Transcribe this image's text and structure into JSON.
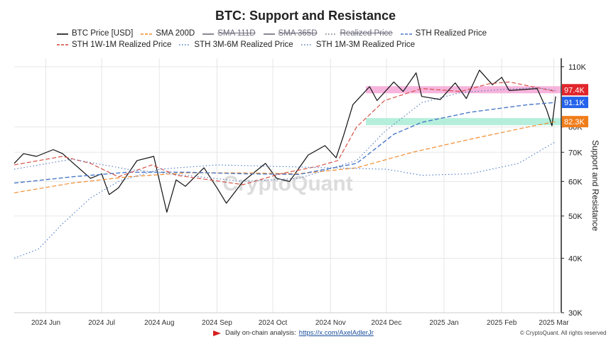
{
  "chart_data": {
    "type": "line",
    "title": "BTC: Support and Resistance",
    "ylabel": "Support and Resistance",
    "xlabel": "",
    "scale": "log",
    "ylim": [
      30000,
      115000
    ],
    "x_ticks": [
      "2024 Jun",
      "2024 Jul",
      "2024 Aug",
      "2024 Sep",
      "2024 Oct",
      "2024 Nov",
      "2024 Dec",
      "2025 Jan",
      "2025 Feb",
      "2025 Mar"
    ],
    "y_ticks": [
      {
        "value": 30000,
        "label": "30K"
      },
      {
        "value": 40000,
        "label": "40K"
      },
      {
        "value": 50000,
        "label": "50K"
      },
      {
        "value": 60000,
        "label": "60K"
      },
      {
        "value": 70000,
        "label": "70K"
      },
      {
        "value": 80000,
        "label": "80K"
      },
      {
        "value": 110000,
        "label": "110K"
      }
    ],
    "x_range": [
      "2024-05-15",
      "2025-03-05"
    ],
    "zones": [
      {
        "name": "resistance",
        "y": 97400,
        "from": "2024-11-20",
        "color": "#f4a7d6"
      },
      {
        "name": "support",
        "y": 82300,
        "from": "2024-11-20",
        "color": "#a8ecd6"
      }
    ],
    "value_labels": [
      {
        "text": "97.4K",
        "value": 97400,
        "color": "#e0262c"
      },
      {
        "text": "91.1K",
        "value": 91100,
        "color": "#2563eb"
      },
      {
        "text": "82.3K",
        "value": 82300,
        "color": "#f07d1c"
      }
    ],
    "series": [
      {
        "name": "BTC Price [USD]",
        "color": "#111111",
        "style": "solid",
        "width": 1.2,
        "struck": false,
        "points": [
          [
            "2024-05-15",
            66000
          ],
          [
            "2024-05-20",
            69500
          ],
          [
            "2024-05-27",
            68500
          ],
          [
            "2024-06-05",
            71000
          ],
          [
            "2024-06-10",
            69500
          ],
          [
            "2024-06-15",
            66500
          ],
          [
            "2024-06-25",
            61000
          ],
          [
            "2024-07-01",
            62500
          ],
          [
            "2024-07-05",
            56000
          ],
          [
            "2024-07-10",
            58000
          ],
          [
            "2024-07-20",
            67000
          ],
          [
            "2024-07-29",
            68500
          ],
          [
            "2024-08-05",
            51000
          ],
          [
            "2024-08-10",
            60500
          ],
          [
            "2024-08-15",
            58500
          ],
          [
            "2024-08-25",
            64500
          ],
          [
            "2024-09-01",
            58000
          ],
          [
            "2024-09-06",
            53500
          ],
          [
            "2024-09-15",
            60000
          ],
          [
            "2024-09-27",
            66000
          ],
          [
            "2024-10-03",
            61000
          ],
          [
            "2024-10-10",
            60000
          ],
          [
            "2024-10-20",
            69000
          ],
          [
            "2024-10-29",
            72500
          ],
          [
            "2024-11-04",
            68000
          ],
          [
            "2024-11-08",
            76500
          ],
          [
            "2024-11-13",
            90000
          ],
          [
            "2024-11-22",
            99000
          ],
          [
            "2024-11-26",
            92000
          ],
          [
            "2024-12-05",
            101500
          ],
          [
            "2024-12-10",
            96500
          ],
          [
            "2024-12-17",
            106500
          ],
          [
            "2024-12-20",
            94000
          ],
          [
            "2024-12-30",
            92500
          ],
          [
            "2025-01-07",
            101000
          ],
          [
            "2025-01-13",
            93000
          ],
          [
            "2025-01-20",
            108000
          ],
          [
            "2025-01-27",
            100000
          ],
          [
            "2025-02-01",
            104000
          ],
          [
            "2025-02-05",
            97000
          ],
          [
            "2025-02-20",
            98000
          ],
          [
            "2025-02-25",
            88000
          ],
          [
            "2025-02-28",
            80500
          ],
          [
            "2025-03-02",
            94000
          ]
        ]
      },
      {
        "name": "SMA 200D",
        "color": "#f08c2e",
        "style": "dash",
        "width": 1.2,
        "struck": false,
        "points": [
          [
            "2024-05-15",
            56500
          ],
          [
            "2024-06-15",
            59500
          ],
          [
            "2024-07-15",
            61500
          ],
          [
            "2024-08-15",
            62800
          ],
          [
            "2024-09-15",
            62800
          ],
          [
            "2024-10-15",
            62500
          ],
          [
            "2024-11-15",
            64500
          ],
          [
            "2024-12-15",
            70000
          ],
          [
            "2025-01-15",
            75000
          ],
          [
            "2025-02-15",
            80000
          ],
          [
            "2025-03-02",
            82300
          ]
        ]
      },
      {
        "name": "SMA 111D",
        "color": "#6b6b7a",
        "style": "solid",
        "width": 1,
        "struck": true,
        "points": []
      },
      {
        "name": "SMA 365D",
        "color": "#6b6b7a",
        "style": "solid",
        "width": 1,
        "struck": true,
        "points": []
      },
      {
        "name": "Realized Price",
        "color": "#6b6b7a",
        "style": "dot",
        "width": 1,
        "struck": true,
        "points": []
      },
      {
        "name": "STH Realized Price",
        "color": "#4a78c8",
        "style": "dash",
        "width": 1.4,
        "struck": false,
        "points": [
          [
            "2024-05-15",
            59500
          ],
          [
            "2024-06-15",
            61500
          ],
          [
            "2024-07-15",
            63000
          ],
          [
            "2024-08-15",
            63000
          ],
          [
            "2024-09-15",
            62500
          ],
          [
            "2024-10-15",
            62300
          ],
          [
            "2024-11-15",
            66000
          ],
          [
            "2024-12-05",
            77000
          ],
          [
            "2024-12-20",
            82000
          ],
          [
            "2025-01-15",
            86500
          ],
          [
            "2025-02-15",
            90000
          ],
          [
            "2025-03-02",
            91100
          ]
        ]
      },
      {
        "name": "STH 1W-1M Realized Price",
        "color": "#d4453a",
        "style": "dash",
        "width": 1.1,
        "struck": false,
        "points": [
          [
            "2024-05-15",
            65500
          ],
          [
            "2024-06-10",
            68500
          ],
          [
            "2024-06-25",
            66000
          ],
          [
            "2024-07-10",
            61500
          ],
          [
            "2024-07-28",
            65500
          ],
          [
            "2024-08-10",
            62000
          ],
          [
            "2024-08-28",
            60500
          ],
          [
            "2024-09-15",
            59000
          ],
          [
            "2024-10-05",
            62500
          ],
          [
            "2024-10-25",
            65000
          ],
          [
            "2024-11-05",
            67000
          ],
          [
            "2024-11-15",
            80000
          ],
          [
            "2024-11-30",
            92000
          ],
          [
            "2024-12-20",
            98000
          ],
          [
            "2025-01-10",
            96500
          ],
          [
            "2025-01-25",
            100500
          ],
          [
            "2025-02-05",
            101500
          ],
          [
            "2025-02-20",
            98500
          ],
          [
            "2025-03-02",
            96500
          ]
        ]
      },
      {
        "name": "STH 3M-6M Realized Price",
        "color": "#4a78c8",
        "style": "dot",
        "width": 1.1,
        "struck": false,
        "points": [
          [
            "2024-05-15",
            40000
          ],
          [
            "2024-05-28",
            42000
          ],
          [
            "2024-06-10",
            48000
          ],
          [
            "2024-06-25",
            55000
          ],
          [
            "2024-07-10",
            60000
          ],
          [
            "2024-08-01",
            64000
          ],
          [
            "2024-09-01",
            65500
          ],
          [
            "2024-10-01",
            65000
          ],
          [
            "2024-11-01",
            64500
          ],
          [
            "2024-12-01",
            64000
          ],
          [
            "2024-12-20",
            62000
          ],
          [
            "2025-01-15",
            62500
          ],
          [
            "2025-02-10",
            66000
          ],
          [
            "2025-02-25",
            72000
          ],
          [
            "2025-03-02",
            74000
          ]
        ]
      },
      {
        "name": "STH 1M-3M Realized Price",
        "color": "#5577b8",
        "style": "dot",
        "width": 1.1,
        "struck": false,
        "points": [
          [
            "2024-05-15",
            64000
          ],
          [
            "2024-06-15",
            67500
          ],
          [
            "2024-07-15",
            64000
          ],
          [
            "2024-08-15",
            62000
          ],
          [
            "2024-09-15",
            60000
          ],
          [
            "2024-10-15",
            61000
          ],
          [
            "2024-11-15",
            67000
          ],
          [
            "2024-11-30",
            78000
          ],
          [
            "2024-12-20",
            91000
          ],
          [
            "2025-01-10",
            96000
          ],
          [
            "2025-02-01",
            97500
          ],
          [
            "2025-02-20",
            98500
          ],
          [
            "2025-03-02",
            97000
          ]
        ]
      }
    ]
  },
  "watermark": "CryptoQuant",
  "footer": {
    "text": "Daily on-chain analysis:",
    "link": "https://x.com/AxelAdlerJr",
    "copyright": "© CryptoQuant. All rights reserved"
  }
}
